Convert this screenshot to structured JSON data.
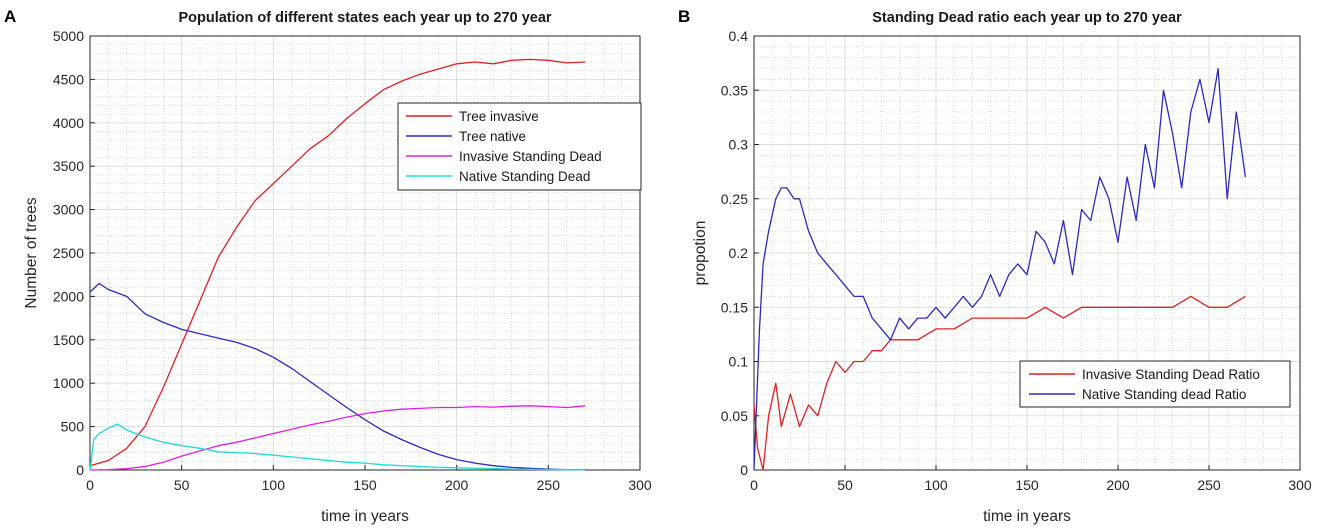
{
  "chart_data": [
    {
      "panel": "A",
      "type": "line",
      "title": "Population of different states each year up to 270 year",
      "xlabel": "time in years",
      "ylabel": "Number of trees",
      "xlim": [
        0,
        300
      ],
      "ylim": [
        0,
        5000
      ],
      "xticks": [
        0,
        50,
        100,
        150,
        200,
        250,
        300
      ],
      "yticks": [
        0,
        500,
        1000,
        1500,
        2000,
        2500,
        3000,
        3500,
        4000,
        4500,
        5000
      ],
      "grid": "minor-dotted",
      "legend_position": "top-right",
      "series": [
        {
          "name": "Tree invasive",
          "color": "#e0201f",
          "x": [
            0,
            10,
            20,
            30,
            40,
            50,
            60,
            70,
            80,
            90,
            100,
            110,
            120,
            130,
            140,
            150,
            160,
            170,
            180,
            190,
            200,
            210,
            220,
            230,
            240,
            250,
            260,
            270
          ],
          "y": [
            50,
            110,
            250,
            500,
            950,
            1450,
            1950,
            2450,
            2800,
            3100,
            3300,
            3500,
            3700,
            3850,
            4050,
            4220,
            4380,
            4480,
            4560,
            4620,
            4680,
            4700,
            4680,
            4720,
            4730,
            4720,
            4690,
            4700
          ]
        },
        {
          "name": "Tree native",
          "color": "#2a2ac4",
          "x": [
            0,
            5,
            10,
            20,
            30,
            40,
            50,
            60,
            70,
            80,
            90,
            100,
            110,
            120,
            130,
            140,
            150,
            160,
            170,
            180,
            190,
            200,
            210,
            220,
            230,
            240,
            250,
            260,
            270
          ],
          "y": [
            2050,
            2150,
            2080,
            2000,
            1800,
            1700,
            1620,
            1570,
            1520,
            1470,
            1400,
            1300,
            1170,
            1020,
            870,
            720,
            580,
            450,
            350,
            260,
            180,
            120,
            80,
            50,
            30,
            20,
            10,
            5,
            3
          ]
        },
        {
          "name": "Invasive Standing Dead",
          "color": "#e020e0",
          "x": [
            0,
            10,
            20,
            30,
            40,
            50,
            60,
            70,
            80,
            90,
            100,
            110,
            120,
            130,
            140,
            150,
            160,
            170,
            180,
            190,
            200,
            210,
            220,
            230,
            240,
            250,
            260,
            270
          ],
          "y": [
            0,
            5,
            15,
            40,
            90,
            160,
            220,
            280,
            320,
            370,
            420,
            470,
            520,
            560,
            610,
            650,
            680,
            700,
            710,
            720,
            720,
            730,
            725,
            735,
            740,
            730,
            720,
            740
          ]
        },
        {
          "name": "Native Standing Dead",
          "color": "#1fd8d8",
          "x": [
            0,
            2,
            5,
            10,
            15,
            20,
            30,
            40,
            50,
            60,
            70,
            80,
            90,
            100,
            110,
            120,
            130,
            140,
            150,
            160,
            170,
            180,
            190,
            200,
            210,
            220,
            230,
            240,
            250,
            260,
            270
          ],
          "y": [
            0,
            350,
            420,
            480,
            530,
            460,
            380,
            320,
            280,
            250,
            210,
            200,
            190,
            170,
            150,
            130,
            110,
            90,
            80,
            60,
            50,
            40,
            30,
            25,
            20,
            15,
            10,
            8,
            5,
            3,
            2
          ]
        }
      ]
    },
    {
      "panel": "B",
      "type": "line",
      "title": "Standing Dead ratio each year up to 270 year",
      "xlabel": "time in years",
      "ylabel": "propotion",
      "xlim": [
        0,
        300
      ],
      "ylim": [
        0,
        0.4
      ],
      "xticks": [
        0,
        50,
        100,
        150,
        200,
        250,
        300
      ],
      "yticks": [
        0,
        0.05,
        0.1,
        0.15,
        0.2,
        0.25,
        0.3,
        0.35,
        0.4
      ],
      "grid": "minor-dotted",
      "legend_position": "lower-right",
      "series": [
        {
          "name": "Invasive Standing Dead Ratio",
          "color": "#e0201f",
          "x": [
            0,
            2,
            5,
            8,
            12,
            15,
            20,
            25,
            30,
            35,
            40,
            45,
            50,
            55,
            60,
            65,
            70,
            75,
            80,
            90,
            100,
            110,
            120,
            130,
            140,
            150,
            160,
            170,
            180,
            190,
            200,
            210,
            220,
            230,
            240,
            250,
            260,
            270
          ],
          "y": [
            0.06,
            0.02,
            0.0,
            0.05,
            0.08,
            0.04,
            0.07,
            0.04,
            0.06,
            0.05,
            0.08,
            0.1,
            0.09,
            0.1,
            0.1,
            0.11,
            0.11,
            0.12,
            0.12,
            0.12,
            0.13,
            0.13,
            0.14,
            0.14,
            0.14,
            0.14,
            0.15,
            0.14,
            0.15,
            0.15,
            0.15,
            0.15,
            0.15,
            0.15,
            0.16,
            0.15,
            0.15,
            0.16
          ]
        },
        {
          "name": "Native Standing dead Ratio",
          "color": "#2a2ac4",
          "x": [
            0,
            3,
            5,
            8,
            12,
            15,
            18,
            22,
            25,
            30,
            35,
            40,
            45,
            50,
            55,
            60,
            65,
            70,
            75,
            80,
            85,
            90,
            95,
            100,
            105,
            110,
            115,
            120,
            125,
            130,
            135,
            140,
            145,
            150,
            155,
            160,
            165,
            170,
            175,
            180,
            185,
            190,
            195,
            200,
            205,
            210,
            215,
            220,
            225,
            230,
            235,
            240,
            245,
            250,
            255,
            260,
            265,
            270
          ],
          "y": [
            0.0,
            0.13,
            0.19,
            0.22,
            0.25,
            0.26,
            0.26,
            0.25,
            0.25,
            0.22,
            0.2,
            0.19,
            0.18,
            0.17,
            0.16,
            0.16,
            0.14,
            0.13,
            0.12,
            0.14,
            0.13,
            0.14,
            0.14,
            0.15,
            0.14,
            0.15,
            0.16,
            0.15,
            0.16,
            0.18,
            0.16,
            0.18,
            0.19,
            0.18,
            0.22,
            0.21,
            0.19,
            0.23,
            0.18,
            0.24,
            0.23,
            0.27,
            0.25,
            0.21,
            0.27,
            0.23,
            0.3,
            0.26,
            0.35,
            0.31,
            0.26,
            0.33,
            0.36,
            0.32,
            0.37,
            0.25,
            0.33,
            0.27
          ]
        }
      ]
    }
  ],
  "labels": {
    "panel_a": "A",
    "panel_b": "B"
  }
}
